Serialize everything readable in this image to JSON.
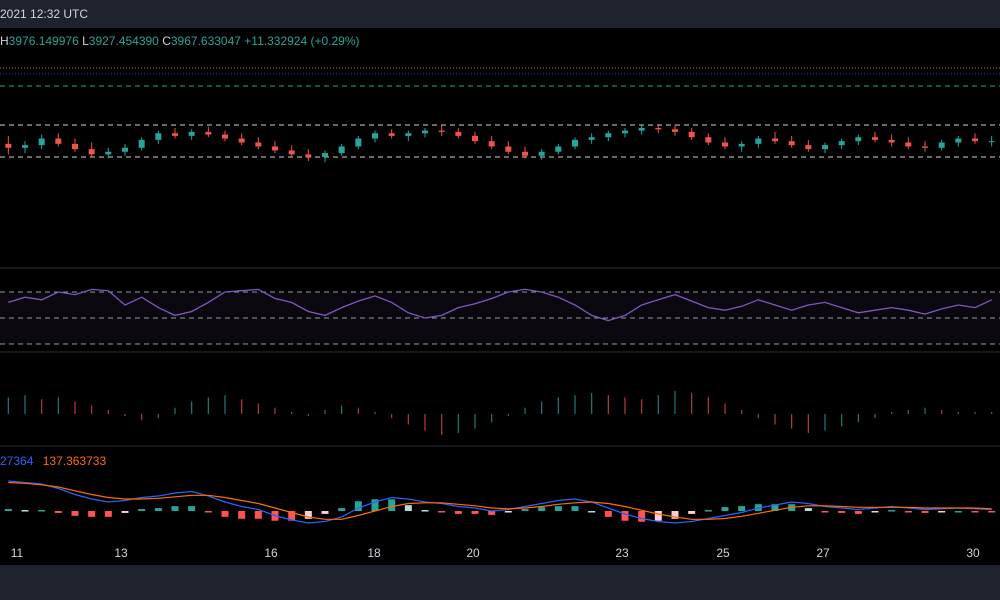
{
  "header": {
    "datetime": "2021 12:32 UTC"
  },
  "ohlc": {
    "high_label": "H",
    "high": "3976.149976",
    "low_label": "L",
    "low": "3927.454390",
    "close_label": "C",
    "close": "3967.633047",
    "change": "+11.332924 (+0.29%)"
  },
  "macd_legend": {
    "macd": "27364",
    "signal": "137.363733"
  },
  "colors": {
    "up": "#26a69a",
    "down": "#ef5350",
    "rsi": "#7e57c2",
    "macd_line": "#2962ff",
    "signal_line": "#ff6d00",
    "topbar": "#1e222d"
  },
  "chart_data": {
    "type": "candlestick",
    "x_ticks": [
      "11",
      "13",
      "16",
      "18",
      "20",
      "23",
      "25",
      "27",
      "30"
    ],
    "price_ohlc": [
      [
        3966,
        3972,
        3958,
        3963
      ],
      [
        3963,
        3968,
        3959,
        3965
      ],
      [
        3965,
        3973,
        3962,
        3970
      ],
      [
        3970,
        3974,
        3964,
        3966
      ],
      [
        3966,
        3970,
        3960,
        3962
      ],
      [
        3962,
        3967,
        3956,
        3958
      ],
      [
        3958,
        3963,
        3955,
        3960
      ],
      [
        3960,
        3966,
        3957,
        3963
      ],
      [
        3963,
        3971,
        3961,
        3969
      ],
      [
        3969,
        3976,
        3966,
        3974
      ],
      [
        3974,
        3978,
        3970,
        3972
      ],
      [
        3972,
        3977,
        3969,
        3975
      ],
      [
        3975,
        3979,
        3971,
        3973
      ],
      [
        3973,
        3976,
        3968,
        3970
      ],
      [
        3970,
        3974,
        3965,
        3967
      ],
      [
        3967,
        3971,
        3962,
        3964
      ],
      [
        3964,
        3968,
        3959,
        3961
      ],
      [
        3961,
        3965,
        3956,
        3958
      ],
      [
        3958,
        3962,
        3953,
        3956
      ],
      [
        3956,
        3961,
        3952,
        3959
      ],
      [
        3959,
        3966,
        3957,
        3964
      ],
      [
        3964,
        3972,
        3962,
        3970
      ],
      [
        3970,
        3976,
        3967,
        3974
      ],
      [
        3974,
        3977,
        3970,
        3972
      ],
      [
        3972,
        3976,
        3968,
        3974
      ],
      [
        3974,
        3978,
        3971,
        3976
      ],
      [
        3976,
        3980,
        3972,
        3975
      ],
      [
        3975,
        3978,
        3970,
        3972
      ],
      [
        3972,
        3975,
        3966,
        3968
      ],
      [
        3968,
        3972,
        3962,
        3964
      ],
      [
        3964,
        3968,
        3958,
        3960
      ],
      [
        3960,
        3964,
        3955,
        3957
      ],
      [
        3957,
        3962,
        3954,
        3960
      ],
      [
        3960,
        3966,
        3958,
        3964
      ],
      [
        3964,
        3971,
        3962,
        3969
      ],
      [
        3969,
        3974,
        3966,
        3971
      ],
      [
        3971,
        3976,
        3968,
        3974
      ],
      [
        3974,
        3978,
        3971,
        3976
      ],
      [
        3976,
        3980,
        3973,
        3978
      ],
      [
        3978,
        3981,
        3974,
        3977
      ],
      [
        3977,
        3980,
        3972,
        3975
      ],
      [
        3975,
        3978,
        3969,
        3971
      ],
      [
        3971,
        3974,
        3965,
        3967
      ],
      [
        3967,
        3971,
        3962,
        3964
      ],
      [
        3964,
        3968,
        3960,
        3966
      ],
      [
        3966,
        3972,
        3963,
        3970
      ],
      [
        3970,
        3975,
        3966,
        3968
      ],
      [
        3968,
        3972,
        3963,
        3965
      ],
      [
        3965,
        3969,
        3960,
        3962
      ],
      [
        3962,
        3967,
        3959,
        3965
      ],
      [
        3965,
        3970,
        3962,
        3968
      ],
      [
        3968,
        3973,
        3965,
        3971
      ],
      [
        3971,
        3975,
        3967,
        3969
      ],
      [
        3969,
        3973,
        3964,
        3967
      ],
      [
        3967,
        3971,
        3962,
        3964
      ],
      [
        3964,
        3968,
        3960,
        3963
      ],
      [
        3963,
        3969,
        3961,
        3967
      ],
      [
        3967,
        3972,
        3964,
        3970
      ],
      [
        3970,
        3974,
        3966,
        3968
      ],
      [
        3968,
        3972,
        3964,
        3968
      ]
    ],
    "rsi": [
      62,
      66,
      64,
      70,
      68,
      72,
      71,
      60,
      66,
      58,
      52,
      55,
      62,
      70,
      71,
      72,
      65,
      62,
      55,
      52,
      58,
      63,
      67,
      62,
      54,
      50,
      52,
      58,
      61,
      65,
      70,
      72,
      70,
      66,
      60,
      52,
      48,
      52,
      60,
      64,
      68,
      63,
      58,
      56,
      59,
      64,
      60,
      56,
      60,
      62,
      58,
      54,
      56,
      58,
      56,
      53,
      57,
      60,
      58,
      64
    ],
    "rsi_levels": [
      70,
      50,
      30
    ],
    "histogram_upper": [
      8,
      9,
      7,
      8,
      6,
      4,
      2,
      -1,
      -3,
      -2,
      3,
      6,
      8,
      9,
      7,
      5,
      3,
      1,
      -1,
      2,
      4,
      3,
      1,
      -2,
      -5,
      -8,
      -10,
      -9,
      -7,
      -4,
      -1,
      3,
      6,
      8,
      9,
      10,
      9,
      8,
      7,
      9,
      11,
      10,
      8,
      5,
      2,
      -2,
      -5,
      -7,
      -9,
      -8,
      -6,
      -4,
      -2,
      1,
      2,
      3,
      2,
      1,
      1,
      1
    ],
    "macd": [
      40,
      38,
      36,
      30,
      22,
      16,
      12,
      14,
      18,
      20,
      24,
      26,
      20,
      12,
      6,
      2,
      -6,
      -12,
      -16,
      -14,
      -8,
      4,
      12,
      18,
      16,
      12,
      10,
      6,
      4,
      0,
      2,
      6,
      10,
      14,
      16,
      12,
      4,
      -4,
      -10,
      -14,
      -16,
      -14,
      -10,
      -6,
      -2,
      4,
      8,
      12,
      10,
      6,
      4,
      2,
      4,
      6,
      4,
      2,
      3,
      4,
      3,
      2
    ],
    "signal": [
      38,
      37,
      35,
      32,
      27,
      22,
      18,
      16,
      16,
      17,
      19,
      21,
      21,
      18,
      14,
      10,
      4,
      -2,
      -8,
      -11,
      -11,
      -6,
      0,
      6,
      10,
      11,
      11,
      9,
      7,
      4,
      3,
      4,
      6,
      9,
      11,
      12,
      10,
      6,
      1,
      -4,
      -8,
      -11,
      -11,
      -10,
      -7,
      -3,
      1,
      5,
      7,
      7,
      6,
      5,
      5,
      5,
      5,
      4,
      4,
      4,
      4,
      3
    ],
    "macd_histogram": [
      2,
      1,
      1,
      -2,
      -5,
      -6,
      -6,
      -2,
      2,
      3,
      5,
      5,
      -1,
      -6,
      -8,
      -8,
      -10,
      -10,
      -8,
      -3,
      3,
      10,
      12,
      12,
      6,
      1,
      -1,
      -3,
      -3,
      -4,
      -1,
      2,
      4,
      5,
      5,
      0,
      -6,
      -10,
      -11,
      -10,
      -8,
      -3,
      1,
      4,
      5,
      7,
      7,
      7,
      3,
      -1,
      -2,
      -3,
      -1,
      1,
      -1,
      -2,
      -1,
      0,
      -1,
      -1
    ]
  }
}
